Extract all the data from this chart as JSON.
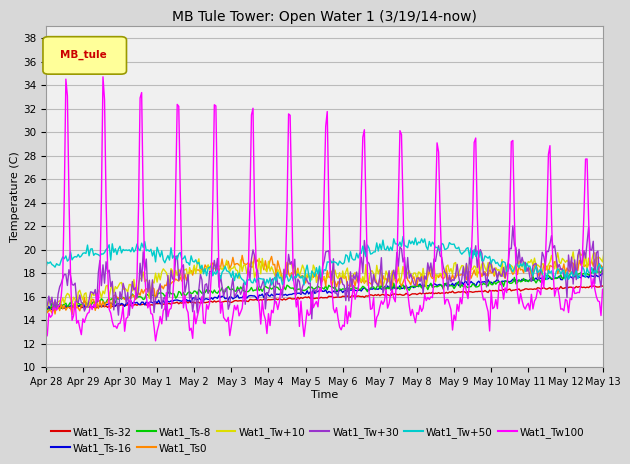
{
  "title": "MB Tule Tower: Open Water 1 (3/19/14-now)",
  "xlabel": "Time",
  "ylabel": "Temperature (C)",
  "ylim": [
    10,
    39
  ],
  "yticks": [
    10,
    12,
    14,
    16,
    18,
    20,
    22,
    24,
    26,
    28,
    30,
    32,
    34,
    36,
    38
  ],
  "x_tick_labels": [
    "Apr 28",
    "Apr 29",
    "Apr 30",
    "May 1",
    "May 2",
    "May 3",
    "May 4",
    "May 5",
    "May 6",
    "May 7",
    "May 8",
    "May 9",
    "May 10",
    "May 11",
    "May 12",
    "May 13"
  ],
  "legend_label": "MB_tule",
  "legend_box_facecolor": "#ffff99",
  "legend_box_edgecolor": "#999900",
  "series_labels": [
    "Wat1_Ts-32",
    "Wat1_Ts-16",
    "Wat1_Ts-8",
    "Wat1_Ts0",
    "Wat1_Tw+10",
    "Wat1_Tw+30",
    "Wat1_Tw+50",
    "Wat1_Tw100"
  ],
  "series_colors": [
    "#dd0000",
    "#0000dd",
    "#00cc00",
    "#ff8800",
    "#dddd00",
    "#9933cc",
    "#00cccc",
    "#ff00ff"
  ],
  "background_color": "#d8d8d8",
  "plot_bg_color": "#f0f0f0",
  "grid_color": "#bbbbbb"
}
